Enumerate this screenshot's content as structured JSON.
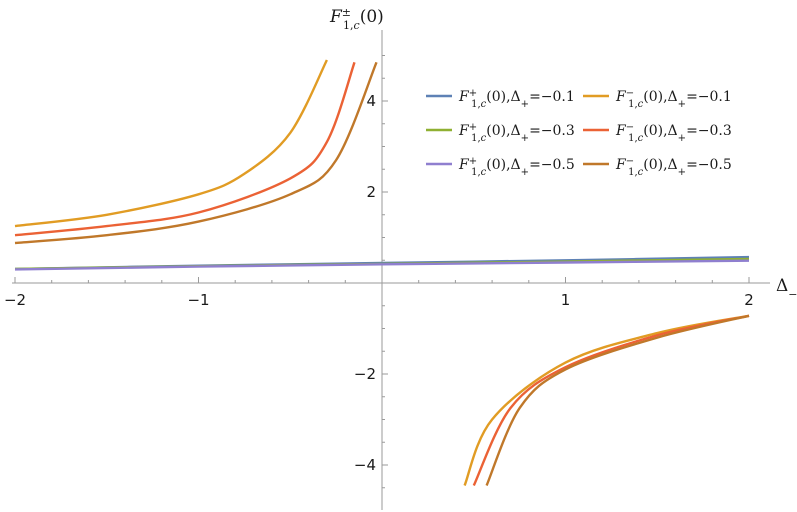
{
  "chart_data": {
    "type": "line",
    "title": "",
    "xlabel": "Δ₋",
    "ylabel": "F±1,c(0)",
    "xlim": [
      -2,
      2
    ],
    "ylim": [
      -4.9,
      5.1
    ],
    "x_ticks": [
      -2,
      -1,
      1,
      2
    ],
    "x_tick_labels": [
      "−2",
      "−1",
      "1",
      "2"
    ],
    "y_ticks": [
      -4,
      -2,
      2,
      4
    ],
    "y_tick_labels": [
      "−4",
      "−2",
      "2",
      "4"
    ],
    "grid": false,
    "legend_position": "top-right",
    "series": [
      {
        "name": "F+1,c(0),Δ+=−0.1",
        "sign": "+",
        "delta_plus": -0.1,
        "color": "#5E81B5",
        "x": [
          -2,
          -1,
          0,
          1,
          2
        ],
        "y": [
          0.31,
          0.38,
          0.44,
          0.5,
          0.57
        ]
      },
      {
        "name": "F+1,c(0),Δ+=−0.3",
        "sign": "+",
        "delta_plus": -0.3,
        "color": "#8FB032",
        "x": [
          -2,
          -1,
          0,
          1,
          2
        ],
        "y": [
          0.31,
          0.37,
          0.42,
          0.47,
          0.53
        ]
      },
      {
        "name": "F+1,c(0),Δ+=−0.5",
        "sign": "+",
        "delta_plus": -0.5,
        "color": "#8F7FCF",
        "x": [
          -2,
          -1,
          0,
          1,
          2
        ],
        "y": [
          0.3,
          0.36,
          0.41,
          0.45,
          0.49
        ]
      },
      {
        "name": "F−1,c(0),Δ+=−0.1",
        "sign": "−",
        "delta_plus": -0.1,
        "color": "#E19C24",
        "x": [
          -2,
          -1.5,
          -1,
          -0.75,
          -0.5,
          -0.3,
          0.45,
          0.6,
          1,
          1.5,
          2
        ],
        "y": [
          1.25,
          1.5,
          1.95,
          2.4,
          3.3,
          4.9,
          -4.45,
          -3.0,
          -1.75,
          -1.1,
          -0.72
        ]
      },
      {
        "name": "F−1,c(0),Δ+=−0.3",
        "sign": "−",
        "delta_plus": -0.3,
        "color": "#EB6235",
        "x": [
          -2,
          -1.5,
          -1,
          -0.5,
          -0.3,
          -0.15,
          0.5,
          0.7,
          1,
          1.5,
          2
        ],
        "y": [
          1.05,
          1.25,
          1.55,
          2.3,
          3.1,
          4.85,
          -4.45,
          -2.75,
          -1.85,
          -1.15,
          -0.72
        ]
      },
      {
        "name": "F−1,c(0),Δ+=−0.5",
        "sign": "−",
        "delta_plus": -0.5,
        "color": "#C0782A",
        "x": [
          -2,
          -1.5,
          -1,
          -0.5,
          -0.25,
          -0.03,
          0.57,
          0.75,
          1,
          1.5,
          2
        ],
        "y": [
          0.88,
          1.05,
          1.35,
          1.95,
          2.7,
          4.85,
          -4.45,
          -2.75,
          -1.9,
          -1.2,
          -0.72
        ]
      }
    ]
  }
}
